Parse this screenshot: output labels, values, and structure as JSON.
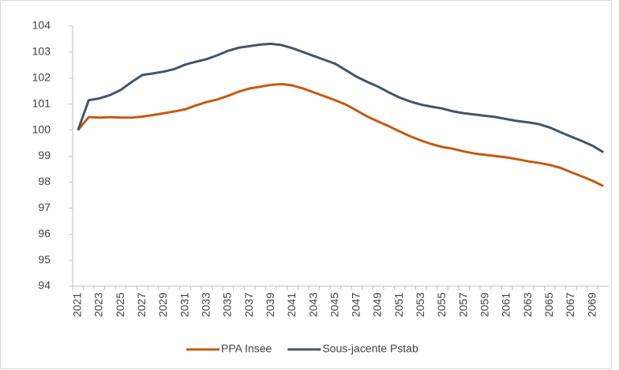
{
  "chart_data": {
    "type": "line",
    "categories": [
      "2021",
      null,
      "2023",
      null,
      "2025",
      null,
      "2027",
      null,
      "2029",
      null,
      "2031",
      null,
      "2033",
      null,
      "2035",
      null,
      "2037",
      null,
      "2039",
      null,
      "2041",
      null,
      "2043",
      null,
      "2045",
      null,
      "2047",
      null,
      "2049",
      null,
      "2051",
      null,
      "2053",
      null,
      "2055",
      null,
      "2057",
      null,
      "2059",
      null,
      "2061",
      null,
      "2063",
      null,
      "2065",
      null,
      "2067",
      null,
      "2069",
      null
    ],
    "series": [
      {
        "name": "PPA Insee",
        "color": "#c55a11",
        "values": [
          100,
          100.5,
          100.48,
          100.5,
          100.48,
          100.48,
          100.52,
          100.58,
          100.65,
          100.72,
          100.8,
          100.95,
          101.08,
          101.18,
          101.32,
          101.48,
          101.6,
          101.67,
          101.74,
          101.77,
          101.72,
          101.6,
          101.45,
          101.3,
          101.15,
          100.98,
          100.75,
          100.52,
          100.33,
          100.15,
          99.95,
          99.76,
          99.6,
          99.46,
          99.35,
          99.28,
          99.18,
          99.1,
          99.05,
          99.0,
          98.95,
          98.88,
          98.8,
          98.74,
          98.66,
          98.55,
          98.38,
          98.22,
          98.05,
          97.85
        ]
      },
      {
        "name": "Sous-jacente Pstab",
        "color": "#44546a",
        "values": [
          100,
          101.15,
          101.22,
          101.35,
          101.55,
          101.85,
          102.12,
          102.18,
          102.25,
          102.35,
          102.52,
          102.63,
          102.73,
          102.88,
          103.05,
          103.17,
          103.23,
          103.29,
          103.32,
          103.27,
          103.15,
          103.0,
          102.85,
          102.7,
          102.55,
          102.3,
          102.05,
          101.85,
          101.67,
          101.45,
          101.25,
          101.1,
          100.98,
          100.9,
          100.83,
          100.72,
          100.65,
          100.6,
          100.55,
          100.5,
          100.42,
          100.35,
          100.3,
          100.23,
          100.1,
          99.92,
          99.75,
          99.58,
          99.4,
          99.15
        ]
      }
    ],
    "ylim": [
      94,
      104
    ],
    "yticks": [
      94,
      95,
      96,
      97,
      98,
      99,
      100,
      101,
      102,
      103,
      104
    ],
    "grid": false,
    "legend": "bottom"
  }
}
